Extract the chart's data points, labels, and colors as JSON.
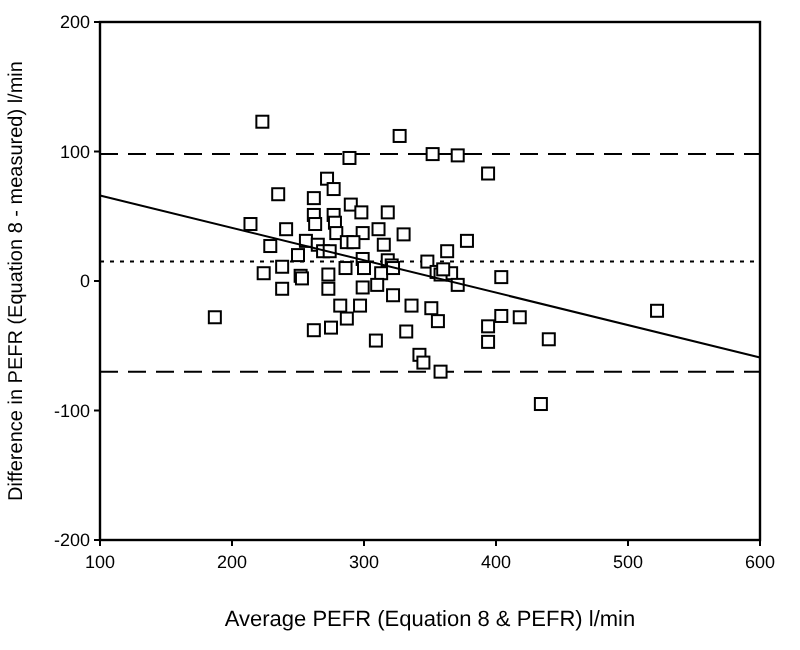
{
  "chart_data": {
    "type": "scatter",
    "xlabel": "Average PEFR (Equation 8 & PEFR) l/min",
    "ylabel": "Difference in PEFR (Equation 8 - measured) l/min",
    "xlim": [
      100,
      600
    ],
    "ylim": [
      -200,
      200
    ],
    "xticks": [
      100,
      200,
      300,
      400,
      500,
      600
    ],
    "yticks": [
      -200,
      -100,
      0,
      100,
      200
    ],
    "grid": false,
    "series": [
      {
        "marker": "square",
        "color": "#000000",
        "x": [
          223,
          327,
          289,
          352,
          272,
          235,
          277,
          262,
          290,
          298,
          318,
          262,
          277,
          214,
          241,
          263,
          278,
          279,
          299,
          311,
          330,
          229,
          256,
          265,
          287,
          292,
          315,
          269,
          274,
          250,
          299,
          318,
          321,
          348,
          363,
          224,
          238,
          252,
          273,
          286,
          300,
          313,
          322,
          355,
          371,
          394,
          378,
          366,
          404,
          238,
          253,
          273,
          299,
          310,
          322,
          187,
          262,
          275,
          282,
          287,
          297,
          309,
          336,
          332,
          351,
          356,
          342,
          345,
          358,
          371,
          394,
          394,
          404,
          418,
          440,
          522,
          434,
          358,
          360
        ],
        "values": [
          123,
          112,
          95,
          98,
          79,
          67,
          71,
          64,
          59,
          53,
          53,
          51,
          51,
          44,
          40,
          44,
          45,
          37,
          37,
          40,
          36,
          27,
          31,
          28,
          30,
          30,
          28,
          23,
          23,
          20,
          17,
          16,
          12,
          15,
          23,
          6,
          11,
          4,
          5,
          10,
          10,
          6,
          10,
          7,
          97,
          83,
          31,
          6,
          3,
          -6,
          2,
          -6,
          -5,
          -3,
          -11,
          -28,
          -38,
          -36,
          -19,
          -29,
          -19,
          -46,
          -19,
          -39,
          -21,
          -31,
          -57,
          -63,
          -70,
          -3,
          -35,
          -47,
          -27,
          -28,
          -45,
          -23,
          -95,
          5,
          9
        ]
      },
      {
        "type": "line",
        "color": "#000000",
        "line_style": "solid",
        "x": [
          100,
          600
        ],
        "values": [
          66,
          -59
        ]
      }
    ],
    "ref_lines": [
      {
        "axis": "y",
        "value": 98,
        "line_style": "dashed",
        "color": "#000000"
      },
      {
        "axis": "y",
        "value": 15,
        "line_style": "dotted",
        "color": "#000000"
      },
      {
        "axis": "y",
        "value": -70,
        "line_style": "dashed",
        "color": "#000000"
      }
    ]
  }
}
